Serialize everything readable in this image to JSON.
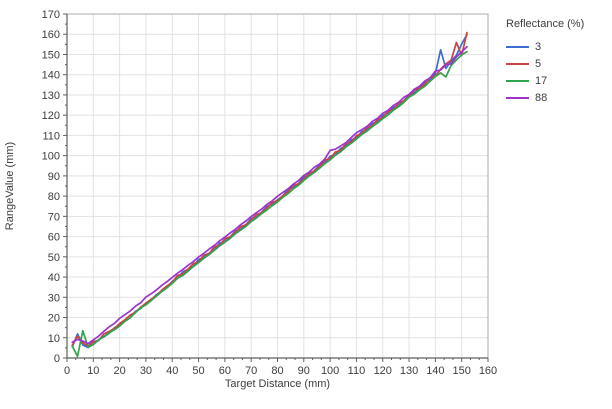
{
  "colors": {
    "background": "#ffffff",
    "plot_background": "#ffffff",
    "grid": "#e2e2e2",
    "border": "#ababab",
    "axis": "#5f5f5f",
    "tick": "#5f5f5f",
    "text": "#3d3d3d"
  },
  "chart_data": {
    "type": "line",
    "title": "",
    "xlabel": "Target Distance (mm)",
    "ylabel": "RangeValue (mm)",
    "xlim": [
      0,
      160
    ],
    "ylim": [
      0,
      170
    ],
    "x_major_tick_step": 10,
    "y_major_tick_step": 10,
    "x_minor_per_major": 3,
    "y_minor_per_major": 2,
    "grid": true,
    "legend_title": "Reflectance (%)",
    "legend_position": "right",
    "x": [
      2,
      4,
      6,
      8,
      10,
      12,
      14,
      16,
      18,
      20,
      22,
      24,
      26,
      28,
      30,
      32,
      34,
      36,
      38,
      40,
      42,
      44,
      46,
      48,
      50,
      52,
      54,
      56,
      58,
      60,
      62,
      64,
      66,
      68,
      70,
      72,
      74,
      76,
      78,
      80,
      82,
      84,
      86,
      88,
      90,
      92,
      94,
      96,
      98,
      100,
      102,
      104,
      106,
      108,
      110,
      112,
      114,
      116,
      118,
      120,
      122,
      124,
      126,
      128,
      130,
      132,
      134,
      136,
      138,
      140,
      142,
      144,
      146,
      148,
      150,
      152
    ],
    "series": [
      {
        "name": "3",
        "color": "#3e6dd1",
        "values": [
          5.5,
          11.9,
          6.4,
          5.2,
          6.9,
          9.0,
          10.4,
          12.2,
          14.9,
          16.2,
          18.4,
          19.8,
          23.1,
          24.4,
          27.2,
          28.7,
          31.3,
          33.2,
          35.1,
          37.9,
          39.3,
          42.6,
          43.8,
          45.3,
          48.7,
          49.6,
          51.8,
          53.5,
          56.8,
          57.6,
          59.9,
          62.8,
          63.7,
          65.9,
          68.9,
          69.7,
          72.1,
          74.9,
          76.1,
          78.2,
          80.1,
          83.4,
          84.2,
          86.3,
          89.4,
          90.3,
          92.6,
          95.4,
          96.5,
          99.7,
          100.4,
          103.6,
          104.7,
          107.9,
          108.6,
          111.9,
          112.7,
          115.9,
          116.8,
          119.9,
          121.1,
          123.9,
          124.8,
          127.2,
          129.9,
          131.2,
          133.1,
          136.4,
          137.2,
          140.6,
          152.3,
          143.1,
          146.8,
          149.6,
          155.2,
          159.8
        ]
      },
      {
        "name": "5",
        "color": "#cb4242",
        "values": [
          6.2,
          10.8,
          7.5,
          5.8,
          8.1,
          8.6,
          11.9,
          13.1,
          14.6,
          17.0,
          18.9,
          21.2,
          22.6,
          25.1,
          27.0,
          29.1,
          30.8,
          33.5,
          35.6,
          37.4,
          40.8,
          41.5,
          43.9,
          46.6,
          47.5,
          50.8,
          51.6,
          54.9,
          55.7,
          58.9,
          59.8,
          62.1,
          64.9,
          65.8,
          68.2,
          70.9,
          71.8,
          74.2,
          76.9,
          77.8,
          80.2,
          82.1,
          85.3,
          86.1,
          88.4,
          91.2,
          92.4,
          94.6,
          97.8,
          98.5,
          101.8,
          102.6,
          105.9,
          106.7,
          109.9,
          110.8,
          113.9,
          114.7,
          117.9,
          118.8,
          121.9,
          122.7,
          125.9,
          127.1,
          129.2,
          132.4,
          133.3,
          135.2,
          138.6,
          139.3,
          142.7,
          145.4,
          147.2,
          155.9,
          149.5,
          160.8
        ]
      },
      {
        "name": "17",
        "color": "#2fa44c",
        "values": [
          5.9,
          0.8,
          13.5,
          5.4,
          6.6,
          8.9,
          10.6,
          12.4,
          13.9,
          15.8,
          18.1,
          19.9,
          22.4,
          24.8,
          26.3,
          28.4,
          30.6,
          32.8,
          34.7,
          36.9,
          39.4,
          40.8,
          42.9,
          45.2,
          47.1,
          49.3,
          51.1,
          53.2,
          55.4,
          57.2,
          59.1,
          61.4,
          63.2,
          65.1,
          67.4,
          69.2,
          71.4,
          73.2,
          75.3,
          77.1,
          79.4,
          81.2,
          83.6,
          85.4,
          87.7,
          89.9,
          91.7,
          93.8,
          96.1,
          97.9,
          100.2,
          101.9,
          104.3,
          106.1,
          108.2,
          110.4,
          112.1,
          114.3,
          116.1,
          118.3,
          120.1,
          122.4,
          124.2,
          126.3,
          128.9,
          130.4,
          132.6,
          134.3,
          136.8,
          139.1,
          140.9,
          138.9,
          144.6,
          147.3,
          149.8,
          151.4
        ]
      },
      {
        "name": "88",
        "color": "#9d33ce",
        "values": [
          7.8,
          9.2,
          8.4,
          7.1,
          8.9,
          10.8,
          13.2,
          15.4,
          17.1,
          19.6,
          21.4,
          23.2,
          25.6,
          27.3,
          30.1,
          31.8,
          33.6,
          35.9,
          37.7,
          39.8,
          41.9,
          43.7,
          45.8,
          47.6,
          49.9,
          51.7,
          53.8,
          55.6,
          57.9,
          59.7,
          61.8,
          63.6,
          65.9,
          67.7,
          69.9,
          71.8,
          73.6,
          75.9,
          77.7,
          79.9,
          81.8,
          83.6,
          85.9,
          87.7,
          90.2,
          91.8,
          94.3,
          95.9,
          98.4,
          102.6,
          103.2,
          104.8,
          106.4,
          108.9,
          111.3,
          112.8,
          114.4,
          116.9,
          118.4,
          120.9,
          122.4,
          124.8,
          126.3,
          128.8,
          130.3,
          132.8,
          134.3,
          136.9,
          138.4,
          141.8,
          142.3,
          144.9,
          145.4,
          148.8,
          151.3,
          153.8
        ]
      }
    ]
  }
}
